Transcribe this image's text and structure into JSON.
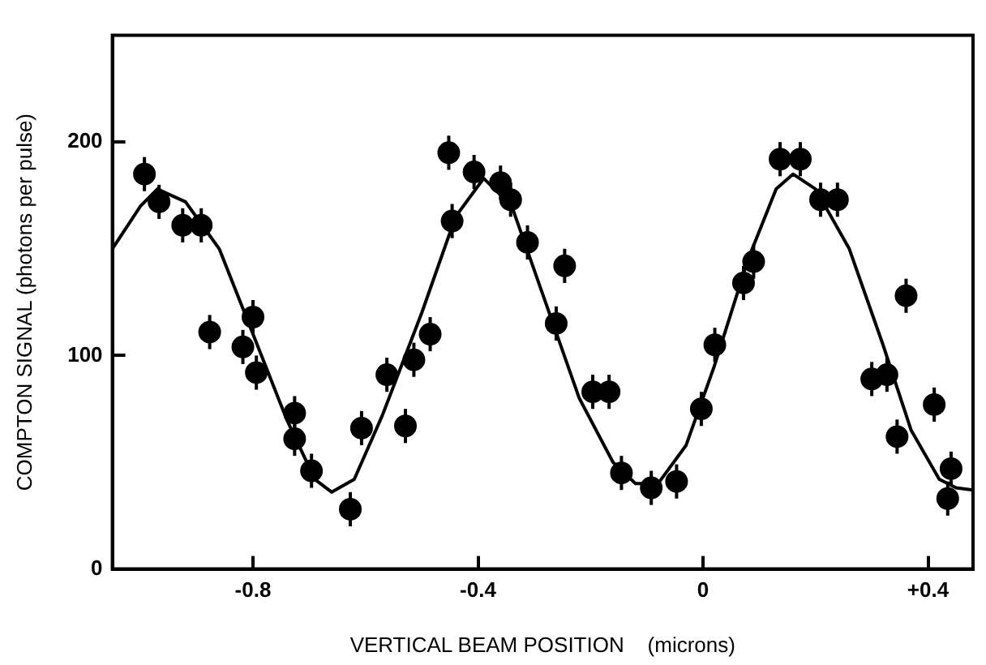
{
  "chart_data": {
    "type": "scatter",
    "xlabel": "VERTICAL BEAM POSITION    (microns)",
    "ylabel": "COMPTON SIGNAL (photons per pulse)",
    "xlim": [
      -1.05,
      0.48
    ],
    "ylim": [
      0,
      250
    ],
    "xticks": [
      -0.8,
      -0.4,
      0,
      {
        "value": 0.4,
        "label": "+0.4"
      }
    ],
    "yticks": [
      0,
      100,
      200
    ],
    "grid": false,
    "legend": false,
    "series": [
      {
        "type": "scatter",
        "color": "#000000",
        "marker": "circle",
        "x": [
          -0.993,
          -0.967,
          -0.925,
          -0.892,
          -0.877,
          -0.8,
          -0.818,
          -0.794,
          -0.726,
          -0.726,
          -0.696,
          -0.627,
          -0.607,
          -0.562,
          -0.529,
          -0.514,
          -0.485,
          -0.452,
          -0.446,
          -0.407,
          -0.36,
          -0.342,
          -0.312,
          -0.246,
          -0.261,
          -0.196,
          -0.167,
          -0.145,
          -0.092,
          -0.047,
          -0.003,
          0.021,
          0.072,
          0.09,
          0.137,
          0.173,
          0.209,
          0.239,
          0.361,
          0.3,
          0.327,
          0.345,
          0.411,
          0.441,
          0.435
        ],
        "values": [
          185,
          172,
          161,
          161,
          111,
          118,
          104,
          92,
          73,
          61,
          46,
          28,
          66,
          91,
          67,
          98,
          110,
          195,
          163,
          186,
          181,
          173,
          153,
          142,
          115,
          83,
          83,
          45,
          38,
          41,
          75,
          105,
          134,
          144,
          192,
          192,
          173,
          173,
          128,
          89,
          91,
          62,
          77,
          47,
          33
        ],
        "errors": [
          8,
          8,
          8,
          8,
          8,
          8,
          8,
          8,
          8,
          8,
          8,
          8,
          8,
          8,
          8,
          8,
          8,
          8,
          8,
          8,
          8,
          8,
          8,
          8,
          8,
          8,
          8,
          8,
          8,
          8,
          8,
          8,
          8,
          8,
          8,
          8,
          8,
          8,
          8,
          8,
          8,
          8,
          8,
          8,
          8
        ]
      },
      {
        "type": "line",
        "color": "#000000",
        "marker": "none",
        "line_style": "solid",
        "x": [
          -1.05,
          -1.0,
          -0.97,
          -0.92,
          -0.86,
          -0.8,
          -0.74,
          -0.69,
          -0.66,
          -0.62,
          -0.57,
          -0.5,
          -0.44,
          -0.39,
          -0.34,
          -0.28,
          -0.22,
          -0.16,
          -0.12,
          -0.08,
          -0.03,
          0.02,
          0.08,
          0.13,
          0.16,
          0.2,
          0.26,
          0.32,
          0.37,
          0.42,
          0.45,
          0.48
        ],
        "values": [
          150,
          170,
          178,
          172,
          150,
          110,
          70,
          42,
          36,
          42,
          72,
          120,
          165,
          183,
          170,
          125,
          80,
          50,
          40,
          40,
          58,
          95,
          145,
          178,
          185,
          178,
          150,
          105,
          65,
          42,
          38,
          37
        ]
      }
    ]
  }
}
